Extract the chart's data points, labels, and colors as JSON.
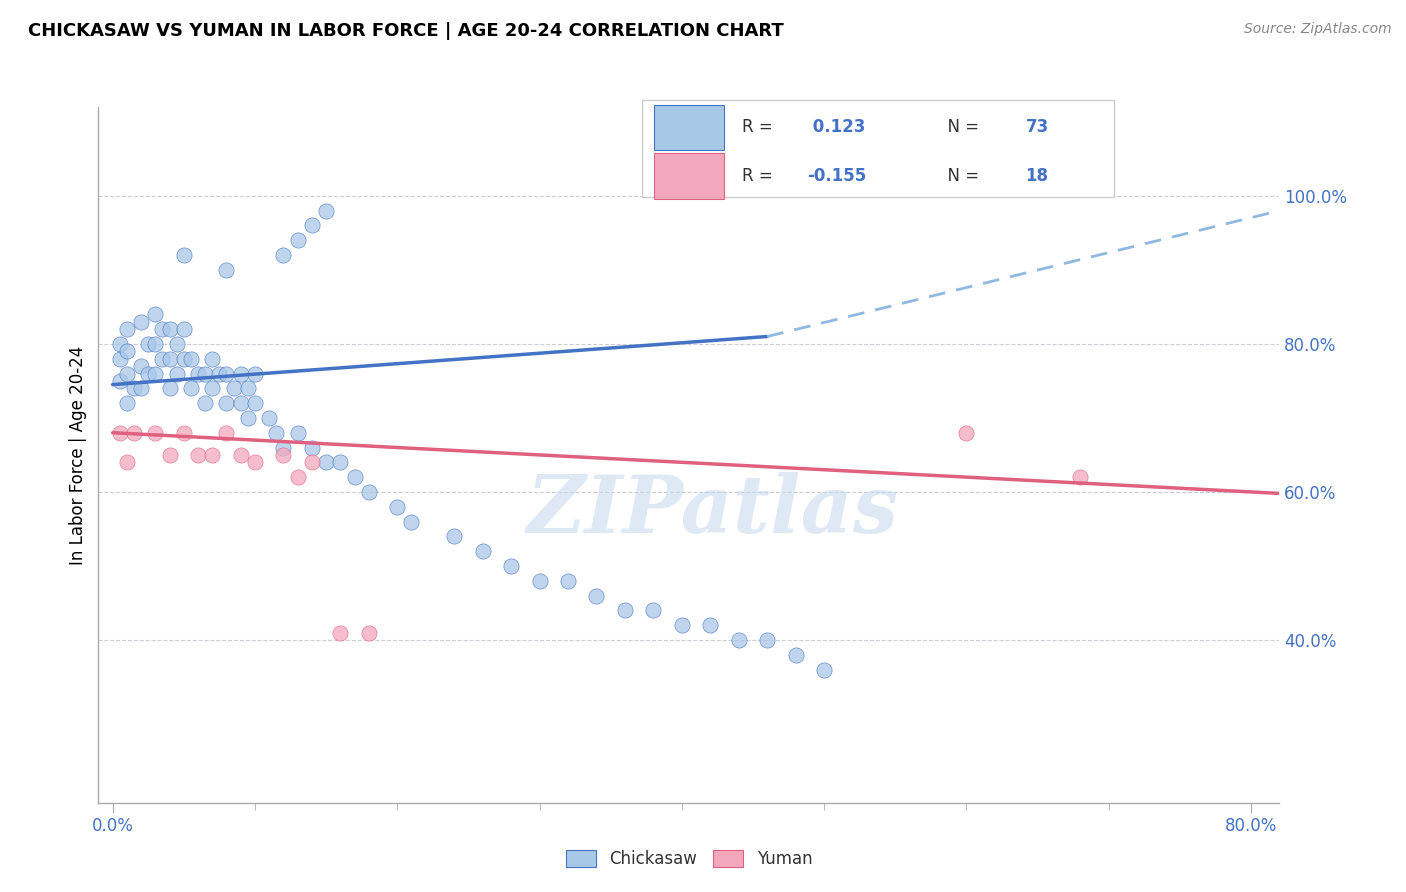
{
  "title": "CHICKASAW VS YUMAN IN LABOR FORCE | AGE 20-24 CORRELATION CHART",
  "source": "Source: ZipAtlas.com",
  "ylabel": "In Labor Force | Age 20-24",
  "xlim": [
    -0.01,
    0.82
  ],
  "ylim": [
    0.18,
    1.12
  ],
  "xtick_labels": [
    "0.0%",
    "",
    "",
    "",
    "",
    "80.0%"
  ],
  "xtick_vals": [
    0.0,
    0.16,
    0.32,
    0.48,
    0.64,
    0.8
  ],
  "ytick_labels": [
    "40.0%",
    "60.0%",
    "80.0%",
    "100.0%"
  ],
  "ytick_vals": [
    0.4,
    0.6,
    0.8,
    1.0
  ],
  "watermark": "ZIPatlas",
  "chickasaw_color": "#a8c8e8",
  "yuman_color": "#f4a8bc",
  "blue_line_color": "#4472c4",
  "pink_line_color": "#e06080",
  "dash_line_color": "#90b8e0",
  "grid_color": "#c8c8d0",
  "chickasaw_x": [
    0.005,
    0.005,
    0.005,
    0.01,
    0.01,
    0.01,
    0.01,
    0.015,
    0.02,
    0.02,
    0.02,
    0.025,
    0.025,
    0.03,
    0.03,
    0.03,
    0.035,
    0.035,
    0.04,
    0.04,
    0.04,
    0.045,
    0.045,
    0.05,
    0.05,
    0.055,
    0.055,
    0.06,
    0.065,
    0.065,
    0.07,
    0.07,
    0.075,
    0.08,
    0.08,
    0.085,
    0.09,
    0.09,
    0.095,
    0.095,
    0.1,
    0.1,
    0.11,
    0.115,
    0.12,
    0.13,
    0.14,
    0.15,
    0.16,
    0.17,
    0.18,
    0.2,
    0.21,
    0.24,
    0.26,
    0.28,
    0.3,
    0.32,
    0.34,
    0.36,
    0.38,
    0.4,
    0.42,
    0.44,
    0.46,
    0.48,
    0.5,
    0.12,
    0.13,
    0.14,
    0.15,
    0.05,
    0.08
  ],
  "chickasaw_y": [
    0.75,
    0.78,
    0.8,
    0.72,
    0.76,
    0.79,
    0.82,
    0.74,
    0.74,
    0.77,
    0.83,
    0.76,
    0.8,
    0.76,
    0.8,
    0.84,
    0.78,
    0.82,
    0.74,
    0.78,
    0.82,
    0.76,
    0.8,
    0.78,
    0.82,
    0.74,
    0.78,
    0.76,
    0.72,
    0.76,
    0.74,
    0.78,
    0.76,
    0.72,
    0.76,
    0.74,
    0.72,
    0.76,
    0.7,
    0.74,
    0.72,
    0.76,
    0.7,
    0.68,
    0.66,
    0.68,
    0.66,
    0.64,
    0.64,
    0.62,
    0.6,
    0.58,
    0.56,
    0.54,
    0.52,
    0.5,
    0.48,
    0.48,
    0.46,
    0.44,
    0.44,
    0.42,
    0.42,
    0.4,
    0.4,
    0.38,
    0.36,
    0.92,
    0.94,
    0.96,
    0.98,
    0.92,
    0.9
  ],
  "yuman_x": [
    0.005,
    0.01,
    0.015,
    0.03,
    0.04,
    0.05,
    0.06,
    0.07,
    0.08,
    0.09,
    0.1,
    0.12,
    0.13,
    0.14,
    0.16,
    0.18,
    0.6,
    0.68
  ],
  "yuman_y": [
    0.68,
    0.64,
    0.68,
    0.68,
    0.65,
    0.68,
    0.65,
    0.65,
    0.68,
    0.65,
    0.64,
    0.65,
    0.62,
    0.64,
    0.41,
    0.41,
    0.68,
    0.62
  ],
  "blue_trendline_x": [
    0.0,
    0.46
  ],
  "blue_trendline_y": [
    0.745,
    0.81
  ],
  "dash_trendline_x": [
    0.46,
    0.82
  ],
  "dash_trendline_y": [
    0.81,
    0.98
  ],
  "pink_trendline_x": [
    0.0,
    0.82
  ],
  "pink_trendline_y": [
    0.68,
    0.598
  ]
}
